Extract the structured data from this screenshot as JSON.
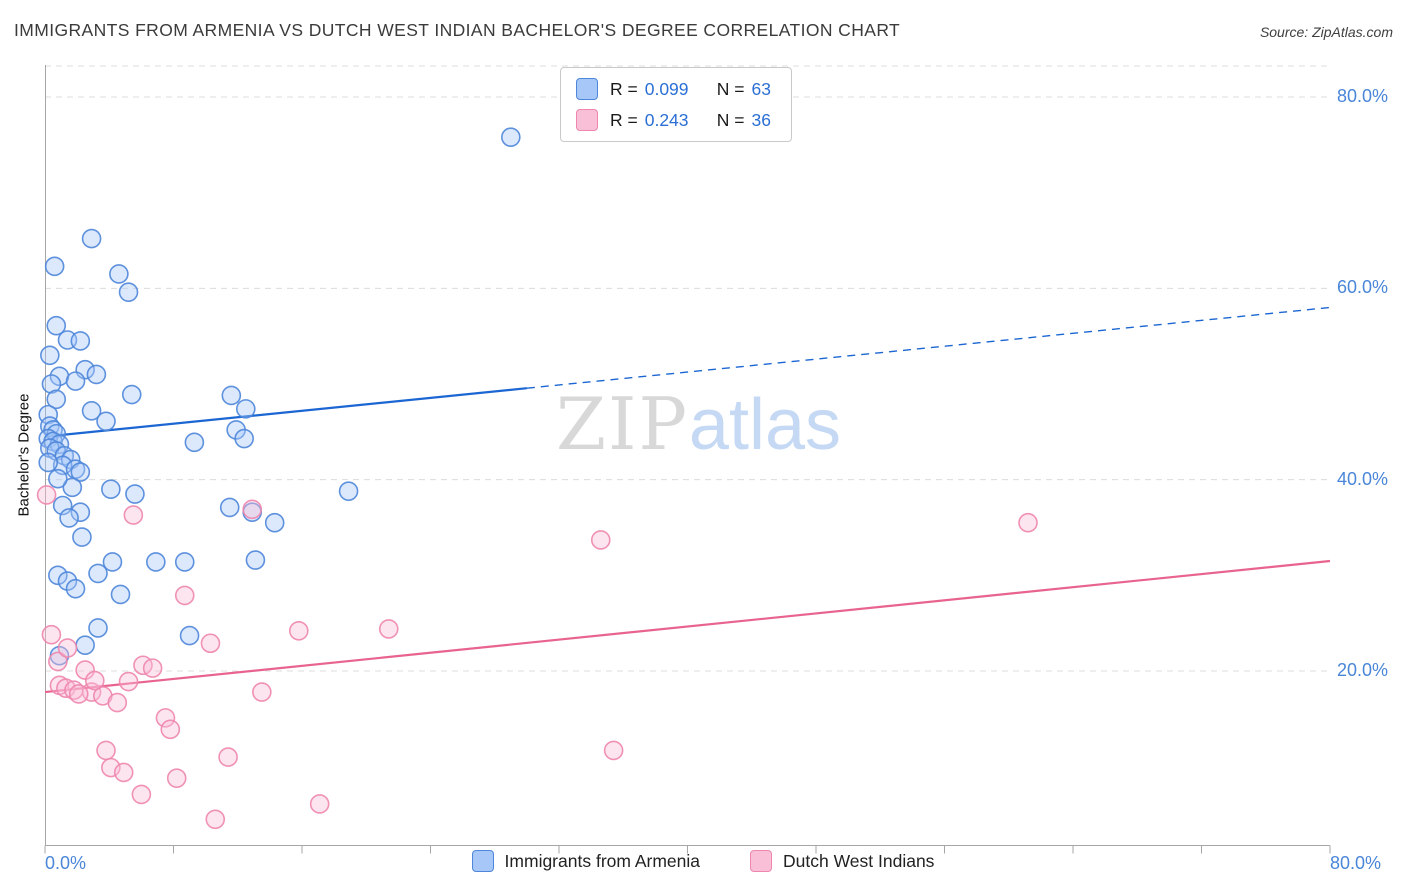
{
  "header": {
    "title": "IMMIGRANTS FROM ARMENIA VS DUTCH WEST INDIAN BACHELOR'S DEGREE CORRELATION CHART",
    "source": "Source: ZipAtlas.com"
  },
  "legend_box": {
    "rows": [
      {
        "r_label": "R =",
        "r_value": "0.099",
        "n_label": "N =",
        "n_value": "63"
      },
      {
        "r_label": "R =",
        "r_value": "0.243",
        "n_label": "N =",
        "n_value": "36"
      }
    ]
  },
  "axes": {
    "y_title": "Bachelor's Degree",
    "x_min_label": "0.0%",
    "x_max_label": "80.0%",
    "y_tick_labels": [
      "80.0%",
      "60.0%",
      "40.0%",
      "20.0%"
    ]
  },
  "bottom_legend": [
    {
      "label": "Immigrants from Armenia"
    },
    {
      "label": "Dutch West Indians"
    }
  ],
  "watermark": {
    "zip": "ZIP",
    "atlas": "atlas"
  },
  "colors": {
    "armenia_fill": "#A7C7F9",
    "armenia_stroke": "#4E86D9",
    "armenia_trend": "#1B66D2",
    "dutch_fill": "#F9BFD6",
    "dutch_stroke": "#EE86AD",
    "dutch_trend": "#E8638E",
    "axis_label_blue": "#4A86D8",
    "grid": "#DCDCDC"
  },
  "chart_data": {
    "type": "scatter",
    "title": "IMMIGRANTS FROM ARMENIA VS DUTCH WEST INDIAN BACHELOR'S DEGREE CORRELATION CHART",
    "xlabel": "",
    "ylabel": "Bachelor's Degree",
    "xlim": [
      0,
      80
    ],
    "ylim": [
      0,
      82
    ],
    "grid": "horizontal-dashed",
    "legend_position": "bottom",
    "y_gridlines": [
      80,
      60,
      40,
      20
    ],
    "x_ticks": [
      0,
      8,
      16,
      24,
      32,
      40,
      48,
      56,
      64,
      72,
      80
    ],
    "series": [
      {
        "name": "Immigrants from Armenia",
        "R": 0.099,
        "N": 63,
        "points": [
          [
            29.0,
            75.8
          ],
          [
            2.9,
            65.2
          ],
          [
            0.6,
            62.3
          ],
          [
            4.6,
            61.5
          ],
          [
            5.2,
            59.6
          ],
          [
            0.7,
            56.1
          ],
          [
            1.4,
            54.6
          ],
          [
            2.2,
            54.5
          ],
          [
            0.3,
            53.0
          ],
          [
            2.5,
            51.5
          ],
          [
            3.2,
            51.0
          ],
          [
            0.9,
            50.8
          ],
          [
            1.9,
            50.3
          ],
          [
            0.4,
            50.0
          ],
          [
            5.4,
            48.9
          ],
          [
            0.7,
            48.4
          ],
          [
            2.9,
            47.2
          ],
          [
            0.2,
            46.8
          ],
          [
            3.8,
            46.1
          ],
          [
            11.6,
            48.8
          ],
          [
            12.5,
            47.4
          ],
          [
            11.9,
            45.2
          ],
          [
            12.4,
            44.3
          ],
          [
            9.3,
            43.9
          ],
          [
            0.3,
            45.6
          ],
          [
            0.5,
            45.2
          ],
          [
            0.7,
            44.8
          ],
          [
            0.2,
            44.3
          ],
          [
            0.5,
            44.0
          ],
          [
            0.9,
            43.7
          ],
          [
            0.3,
            43.3
          ],
          [
            0.7,
            43.0
          ],
          [
            1.2,
            42.5
          ],
          [
            1.6,
            42.1
          ],
          [
            1.1,
            41.5
          ],
          [
            1.9,
            41.1
          ],
          [
            2.2,
            40.8
          ],
          [
            18.9,
            38.8
          ],
          [
            4.1,
            39.0
          ],
          [
            5.6,
            38.5
          ],
          [
            1.7,
            39.2
          ],
          [
            0.8,
            40.1
          ],
          [
            11.5,
            37.1
          ],
          [
            12.9,
            36.6
          ],
          [
            2.2,
            36.6
          ],
          [
            1.1,
            37.3
          ],
          [
            14.3,
            35.5
          ],
          [
            2.3,
            34.0
          ],
          [
            4.2,
            31.4
          ],
          [
            6.9,
            31.4
          ],
          [
            8.7,
            31.4
          ],
          [
            0.8,
            30.0
          ],
          [
            1.4,
            29.4
          ],
          [
            1.9,
            28.6
          ],
          [
            3.3,
            30.2
          ],
          [
            4.7,
            28.0
          ],
          [
            13.1,
            31.6
          ],
          [
            3.3,
            24.5
          ],
          [
            9.0,
            23.7
          ],
          [
            2.5,
            22.7
          ],
          [
            0.9,
            21.6
          ],
          [
            1.5,
            36.0
          ],
          [
            0.2,
            41.8
          ]
        ]
      },
      {
        "name": "Dutch West Indians",
        "R": 0.243,
        "N": 36,
        "points": [
          [
            0.1,
            38.4
          ],
          [
            5.5,
            36.3
          ],
          [
            12.9,
            36.9
          ],
          [
            34.6,
            33.7
          ],
          [
            61.2,
            35.5
          ],
          [
            0.4,
            23.8
          ],
          [
            8.7,
            27.9
          ],
          [
            15.8,
            24.2
          ],
          [
            21.4,
            24.4
          ],
          [
            0.8,
            21.0
          ],
          [
            10.3,
            22.9
          ],
          [
            1.4,
            22.4
          ],
          [
            2.5,
            20.1
          ],
          [
            6.1,
            20.6
          ],
          [
            6.7,
            20.3
          ],
          [
            0.9,
            18.5
          ],
          [
            1.3,
            18.2
          ],
          [
            1.8,
            18.0
          ],
          [
            2.9,
            17.8
          ],
          [
            3.6,
            17.4
          ],
          [
            3.1,
            19.0
          ],
          [
            4.5,
            16.7
          ],
          [
            13.5,
            17.8
          ],
          [
            7.5,
            15.1
          ],
          [
            7.8,
            13.9
          ],
          [
            3.8,
            11.7
          ],
          [
            11.4,
            11.0
          ],
          [
            35.4,
            11.7
          ],
          [
            4.1,
            9.9
          ],
          [
            4.9,
            9.4
          ],
          [
            8.2,
            8.8
          ],
          [
            6.0,
            7.1
          ],
          [
            17.1,
            6.1
          ],
          [
            10.6,
            4.5
          ],
          [
            5.2,
            18.9
          ],
          [
            2.1,
            17.6
          ]
        ]
      }
    ],
    "trend_lines": [
      {
        "series": "Immigrants from Armenia",
        "start": [
          0,
          44.5
        ],
        "end": [
          80,
          58.0
        ],
        "solid_until_x": 30
      },
      {
        "series": "Dutch West Indians",
        "start": [
          0,
          17.8
        ],
        "end": [
          80,
          31.5
        ],
        "solid_until_x": 80
      }
    ]
  }
}
